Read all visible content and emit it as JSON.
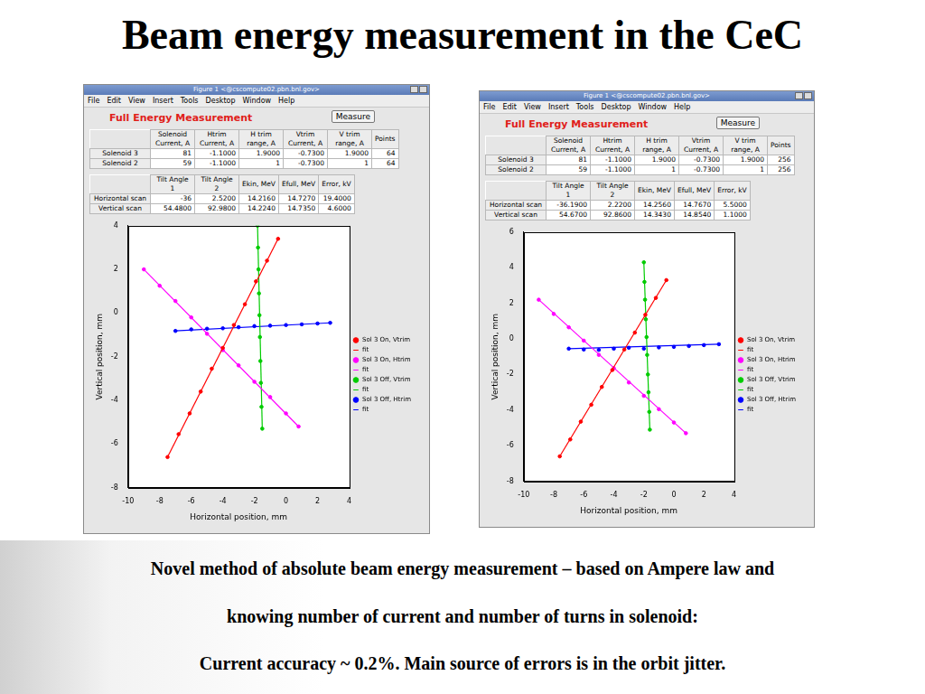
{
  "slide": {
    "title": "Beam energy measurement in the CeC",
    "caption": [
      "Novel method of absolute beam energy measurement – based on Ampere law and",
      "knowing number of current and number of turns in solenoid:",
      "Current accuracy ~ 0.2%. Main source of errors is in the orbit jitter."
    ]
  },
  "windows": [
    {
      "window_title": "Figure 1 <@cscompute02.pbn.bnl.gov>",
      "menu": [
        "File",
        "Edit",
        "View",
        "Insert",
        "Tools",
        "Desktop",
        "Window",
        "Help"
      ],
      "heading": "Full Energy Measurement",
      "button": "Measure",
      "tables": [
        {
          "headers": [
            "Solenoid Current, A",
            "Htrim Current, A",
            "H trim range, A",
            "Vtrim Current, A",
            "V trim range, A",
            "Points"
          ],
          "rows": [
            {
              "label": "Solenoid 3",
              "cells": [
                "81",
                "-1.1000",
                "1.9000",
                "-0.7300",
                "1.9000",
                "64"
              ]
            },
            {
              "label": "Solenoid 2",
              "cells": [
                "59",
                "-1.1000",
                "1",
                "-0.7300",
                "1",
                "64"
              ]
            }
          ]
        },
        {
          "headers": [
            "Tilt Angle 1",
            "Tilt Angle 2",
            "Ekin, MeV",
            "Efull, MeV",
            "Error, kV"
          ],
          "rows": [
            {
              "label": "Horizontal scan",
              "cells": [
                "-36",
                "2.5200",
                "14.2160",
                "14.7270",
                "19.4000"
              ]
            },
            {
              "label": "Vertical scan",
              "cells": [
                "54.4800",
                "92.9800",
                "14.2240",
                "14.7350",
                "4.6000"
              ]
            }
          ]
        }
      ]
    },
    {
      "window_title": "Figure 1 <@cscompute02.pbn.bnl.gov>",
      "menu": [
        "File",
        "Edit",
        "View",
        "Insert",
        "Tools",
        "Desktop",
        "Window",
        "Help"
      ],
      "heading": "Full Energy Measurement",
      "button": "Measure",
      "tables": [
        {
          "headers": [
            "Solenoid Current, A",
            "Htrim Current, A",
            "H trim range, A",
            "Vtrim Current, A",
            "V trim range, A",
            "Points"
          ],
          "rows": [
            {
              "label": "Solenoid 3",
              "cells": [
                "81",
                "-1.1000",
                "1.9000",
                "-0.7300",
                "1.9000",
                "256"
              ]
            },
            {
              "label": "Solenoid 2",
              "cells": [
                "59",
                "-1.1000",
                "1",
                "-0.7300",
                "1",
                "256"
              ]
            }
          ]
        },
        {
          "headers": [
            "Tilt Angle 1",
            "Tilt Angle 2",
            "Ekin, MeV",
            "Efull, MeV",
            "Error, kV"
          ],
          "rows": [
            {
              "label": "Horizontal scan",
              "cells": [
                "-36.1900",
                "2.2200",
                "14.2560",
                "14.7670",
                "5.5000"
              ]
            },
            {
              "label": "Vertical scan",
              "cells": [
                "54.6700",
                "92.8600",
                "14.3430",
                "14.8540",
                "1.1000"
              ]
            }
          ]
        }
      ]
    }
  ],
  "chart_data": [
    {
      "type": "scatter",
      "x_label": "Horizontal position, mm",
      "y_label": "Vertical position, mm",
      "xlim": [
        -10,
        4
      ],
      "xticks": [
        -10,
        -8,
        -6,
        -4,
        -2,
        0,
        2,
        4
      ],
      "ylim": [
        -8,
        4
      ],
      "yticks": [
        -8,
        -6,
        -4,
        -2,
        0,
        2,
        4
      ],
      "grid": false,
      "legend": "right",
      "series": [
        {
          "name": "Sol 3 On, Vtrim",
          "type": "scatter",
          "marker": "circle",
          "color": "#ff0000",
          "x": [
            -7.5,
            -6.8,
            -6.1,
            -5.4,
            -4.7,
            -4.0,
            -3.3,
            -2.6,
            -1.9,
            -1.2,
            -0.5
          ],
          "values": [
            -6.6,
            -5.55,
            -4.6,
            -3.6,
            -2.55,
            -1.6,
            -0.55,
            0.4,
            1.45,
            2.4,
            3.4
          ]
        },
        {
          "name": "fit",
          "type": "line",
          "line_style": "solid",
          "color": "#ff0000",
          "x": [
            -7.5,
            -0.5
          ],
          "values": [
            -6.6,
            3.4
          ]
        },
        {
          "name": "Sol 3 On, Htrim",
          "type": "scatter",
          "marker": "circle",
          "color": "#ff00ff",
          "x": [
            -9,
            -8,
            -7,
            -6,
            -5,
            -4,
            -3,
            -2,
            -1,
            0,
            0.8
          ],
          "values": [
            2.0,
            1.25,
            0.55,
            -0.2,
            -0.95,
            -1.7,
            -2.4,
            -3.15,
            -3.85,
            -4.6,
            -5.2
          ]
        },
        {
          "name": "fit",
          "type": "line",
          "line_style": "solid",
          "color": "#ff00ff",
          "x": [
            -9,
            0.8
          ],
          "values": [
            2.0,
            -5.2
          ]
        },
        {
          "name": "Sol 3 Off, Vtrim",
          "type": "scatter",
          "marker": "circle",
          "color": "#00cc00",
          "x": [
            -1.8,
            -1.77,
            -1.74,
            -1.71,
            -1.68,
            -1.65,
            -1.62,
            -1.59,
            -1.55,
            -1.5
          ],
          "values": [
            4,
            3,
            2,
            0.9,
            -0.1,
            -1.1,
            -2.2,
            -3.2,
            -4.3,
            -5.3
          ]
        },
        {
          "name": "fit",
          "type": "line",
          "line_style": "solid",
          "color": "#00cc00",
          "x": [
            -1.8,
            -1.5
          ],
          "values": [
            4,
            -5.3
          ]
        },
        {
          "name": "Sol 3 Off, Htrim",
          "type": "scatter",
          "marker": "circle",
          "color": "#0000ff",
          "x": [
            -7,
            -6,
            -5,
            -4,
            -3,
            -2,
            -1,
            0,
            1,
            2,
            2.8
          ],
          "values": [
            -0.82,
            -0.75,
            -0.72,
            -0.7,
            -0.65,
            -0.6,
            -0.58,
            -0.55,
            -0.52,
            -0.48,
            -0.45
          ]
        },
        {
          "name": "fit",
          "type": "line",
          "line_style": "solid",
          "color": "#0000ff",
          "x": [
            -7,
            2.8
          ],
          "values": [
            -0.82,
            -0.45
          ]
        }
      ]
    },
    {
      "type": "scatter",
      "x_label": "Horizontal position, mm",
      "y_label": "Vertical position, mm",
      "xlim": [
        -10,
        4
      ],
      "xticks": [
        -10,
        -8,
        -6,
        -4,
        -2,
        0,
        2,
        4
      ],
      "ylim": [
        -8,
        6
      ],
      "yticks": [
        -8,
        -6,
        -4,
        -2,
        0,
        2,
        4,
        6
      ],
      "grid": false,
      "legend": "right",
      "series": [
        {
          "name": "Sol 3 On, Vtrim",
          "type": "scatter",
          "marker": "circle",
          "color": "#ff0000",
          "x": [
            -7.6,
            -6.9,
            -6.2,
            -5.5,
            -4.8,
            -4.1,
            -3.3,
            -2.6,
            -1.9,
            -1.2,
            -0.5
          ],
          "values": [
            -6.6,
            -5.65,
            -4.65,
            -3.7,
            -2.7,
            -1.75,
            -0.6,
            0.35,
            1.35,
            2.3,
            3.3
          ]
        },
        {
          "name": "fit",
          "type": "line",
          "line_style": "solid",
          "color": "#ff0000",
          "x": [
            -7.6,
            -0.5
          ],
          "values": [
            -6.6,
            3.3
          ]
        },
        {
          "name": "Sol 3 On, Htrim",
          "type": "scatter",
          "marker": "circle",
          "color": "#ff00ff",
          "x": [
            -9,
            -8,
            -7,
            -6,
            -5,
            -4,
            -3,
            -2,
            -1,
            0,
            0.8
          ],
          "values": [
            2.2,
            1.4,
            0.65,
            -0.1,
            -0.9,
            -1.65,
            -2.45,
            -3.2,
            -3.95,
            -4.7,
            -5.3
          ]
        },
        {
          "name": "fit",
          "type": "line",
          "line_style": "solid",
          "color": "#ff00ff",
          "x": [
            -9,
            0.8
          ],
          "values": [
            2.2,
            -5.3
          ]
        },
        {
          "name": "Sol 3 Off, Vtrim",
          "type": "scatter",
          "marker": "circle",
          "color": "#00cc00",
          "x": [
            -2,
            -1.96,
            -1.92,
            -1.87,
            -1.82,
            -1.78,
            -1.73,
            -1.69,
            -1.64,
            -1.6
          ],
          "values": [
            4.3,
            3.2,
            2.2,
            1.1,
            0.1,
            -0.9,
            -2,
            -3,
            -4.1,
            -5.1
          ]
        },
        {
          "name": "fit",
          "type": "line",
          "line_style": "solid",
          "color": "#00cc00",
          "x": [
            -2,
            -1.6
          ],
          "values": [
            4.3,
            -5.1
          ]
        },
        {
          "name": "Sol 3 Off, Htrim",
          "type": "scatter",
          "marker": "circle",
          "color": "#0000ff",
          "x": [
            -7,
            -6,
            -5,
            -4,
            -3,
            -2,
            -1,
            0,
            1,
            2,
            3
          ],
          "values": [
            -0.55,
            -0.6,
            -0.62,
            -0.55,
            -0.5,
            -0.55,
            -0.48,
            -0.45,
            -0.4,
            -0.35,
            -0.3
          ]
        },
        {
          "name": "fit",
          "type": "line",
          "line_style": "solid",
          "color": "#0000ff",
          "x": [
            -7,
            3
          ],
          "values": [
            -0.55,
            -0.3
          ]
        }
      ]
    }
  ]
}
